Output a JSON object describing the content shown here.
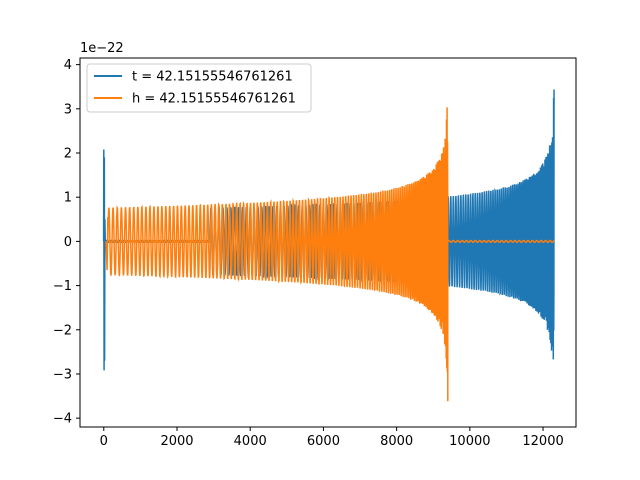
{
  "chart_data": {
    "type": "line",
    "title": "",
    "xlabel": "",
    "ylabel": "",
    "y_offset_label": "1e−22",
    "xlim": [
      -650,
      12900
    ],
    "ylim": [
      -4.2,
      4.15
    ],
    "x_ticks": [
      0,
      2000,
      4000,
      6000,
      8000,
      10000,
      12000
    ],
    "x_tick_labels": [
      "0",
      "2000",
      "4000",
      "6000",
      "8000",
      "10000",
      "12000"
    ],
    "y_ticks": [
      4,
      3,
      2,
      1,
      0,
      -1,
      -2,
      -3,
      -4
    ],
    "y_tick_labels": [
      "4",
      "3",
      "2",
      "1",
      "0",
      "−1",
      "−2",
      "−3",
      "−4"
    ],
    "grid": false,
    "legend_position": "top-left",
    "series": [
      {
        "name": "t = 42.15155546761261",
        "color": "#1f77b4",
        "description_points": {
          "spike_x": 0,
          "spike_max": 2.08,
          "spike_min": -2.92,
          "segments": [
            {
              "x_start": 100,
              "x_end": 2900,
              "amplitude": 0.02
            },
            {
              "x_start": 2900,
              "x_end": 12300,
              "amplitude_start": 0.74,
              "amplitude_at_9400": 0.9,
              "amplitude_end": 3.8
            }
          ],
          "end_x": 12300
        }
      },
      {
        "name": "h = 42.15155546761261",
        "color": "#ff7f0e",
        "description_points": {
          "segments": [
            {
              "x_start": 100,
              "x_end": 9400,
              "amplitude_start": 0.7,
              "amplitude_end": 3.8
            },
            {
              "x_start": 9400,
              "x_end": 12300,
              "amplitude": 0.02
            }
          ],
          "start_dip": -0.65
        }
      }
    ]
  }
}
